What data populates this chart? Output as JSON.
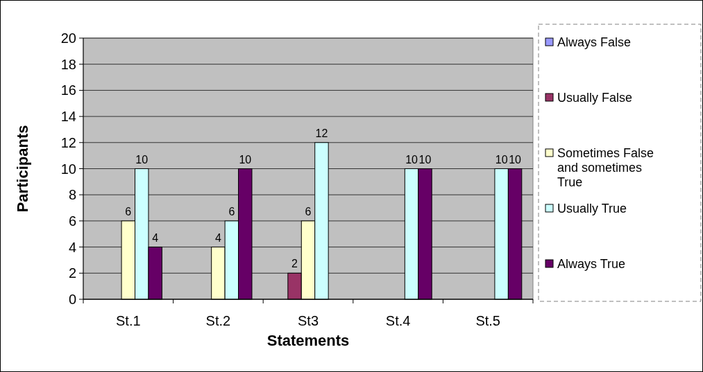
{
  "chart_data": {
    "type": "bar",
    "xlabel": "Statements",
    "ylabel": "Participants",
    "categories": [
      "St.1",
      "St.2",
      "St3",
      "St.4",
      "St.5"
    ],
    "series": [
      {
        "name": "Always False",
        "color": "#9999ff",
        "values": [
          null,
          null,
          null,
          null,
          null
        ]
      },
      {
        "name": "Usually False",
        "color": "#993366",
        "values": [
          null,
          null,
          2,
          null,
          null
        ]
      },
      {
        "name": "Sometimes False and sometimes True",
        "color": "#ffffcc",
        "values": [
          6,
          4,
          6,
          null,
          null
        ]
      },
      {
        "name": "Usually True",
        "color": "#ccffff",
        "values": [
          10,
          6,
          12,
          10,
          10
        ]
      },
      {
        "name": "Always True",
        "color": "#660066",
        "values": [
          4,
          10,
          null,
          10,
          10
        ]
      }
    ],
    "ylim": [
      0,
      20
    ],
    "yticks": [
      0,
      2,
      4,
      6,
      8,
      10,
      12,
      14,
      16,
      18,
      20
    ],
    "grid": "y",
    "legend": "right",
    "data_labels": true
  }
}
